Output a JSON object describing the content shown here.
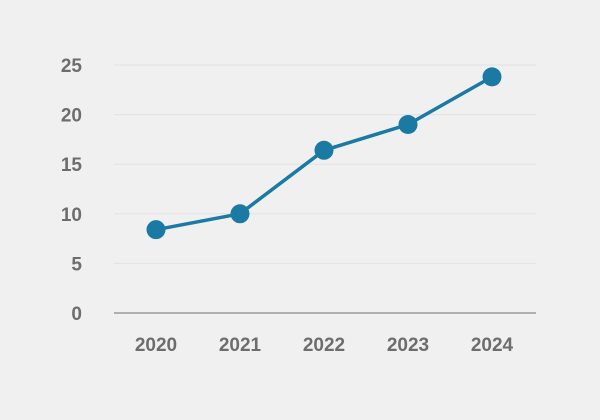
{
  "chart_data": {
    "type": "line",
    "title": "",
    "xlabel": "",
    "ylabel": "",
    "categories": [
      "2020",
      "2021",
      "2022",
      "2023",
      "2024"
    ],
    "series": [
      {
        "values": [
          8.4,
          10.0,
          16.4,
          19.0,
          23.8
        ],
        "color": "#1a7aa3"
      }
    ],
    "ylim": [
      0,
      25
    ],
    "yticks": [
      0,
      5,
      10,
      15,
      20,
      25
    ],
    "grid": true,
    "legend": "none",
    "background": "#f0f0f0"
  }
}
